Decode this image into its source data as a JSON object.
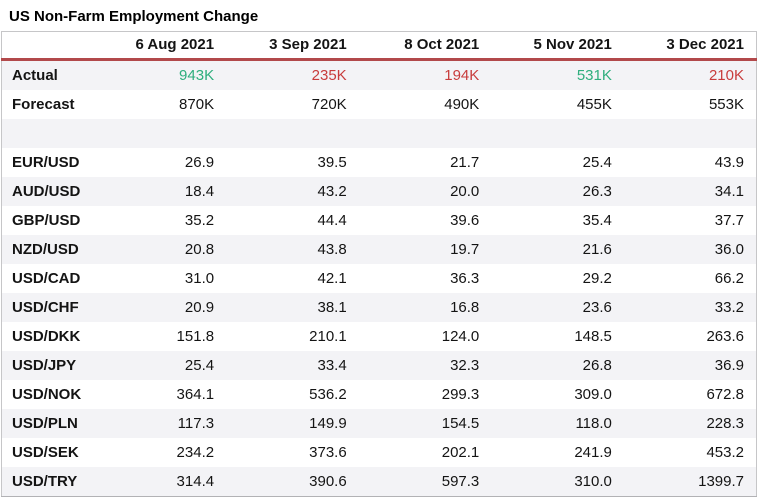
{
  "title": "US Non-Farm Employment Change",
  "colors": {
    "positive": "#2eae7d",
    "negative": "#c83c3c",
    "header_underline": "#b2494b",
    "stripe": "#f3f3f6",
    "border": "#c6c6c8",
    "text": "#141414"
  },
  "chart_data": {
    "type": "table",
    "title": "US Non-Farm Employment Change",
    "columns": [
      "6 Aug 2021",
      "3 Sep 2021",
      "8 Oct 2021",
      "5 Nov 2021",
      "3 Dec 2021"
    ],
    "rows": [
      {
        "label": "Actual",
        "values": [
          "943K",
          "235K",
          "194K",
          "531K",
          "210K"
        ],
        "value_colors": [
          "positive",
          "negative",
          "negative",
          "positive",
          "negative"
        ]
      },
      {
        "label": "Forecast",
        "values": [
          "870K",
          "720K",
          "490K",
          "455K",
          "553K"
        ]
      },
      {
        "label": "",
        "values": [
          "",
          "",
          "",
          "",
          ""
        ],
        "spacer": true
      },
      {
        "label": "EUR/USD",
        "values": [
          "26.9",
          "39.5",
          "21.7",
          "25.4",
          "43.9"
        ]
      },
      {
        "label": "AUD/USD",
        "values": [
          "18.4",
          "43.2",
          "20.0",
          "26.3",
          "34.1"
        ]
      },
      {
        "label": "GBP/USD",
        "values": [
          "35.2",
          "44.4",
          "39.6",
          "35.4",
          "37.7"
        ]
      },
      {
        "label": "NZD/USD",
        "values": [
          "20.8",
          "43.8",
          "19.7",
          "21.6",
          "36.0"
        ]
      },
      {
        "label": "USD/CAD",
        "values": [
          "31.0",
          "42.1",
          "36.3",
          "29.2",
          "66.2"
        ]
      },
      {
        "label": "USD/CHF",
        "values": [
          "20.9",
          "38.1",
          "16.8",
          "23.6",
          "33.2"
        ]
      },
      {
        "label": "USD/DKK",
        "values": [
          "151.8",
          "210.1",
          "124.0",
          "148.5",
          "263.6"
        ]
      },
      {
        "label": "USD/JPY",
        "values": [
          "25.4",
          "33.4",
          "32.3",
          "26.8",
          "36.9"
        ]
      },
      {
        "label": "USD/NOK",
        "values": [
          "364.1",
          "536.2",
          "299.3",
          "309.0",
          "672.8"
        ]
      },
      {
        "label": "USD/PLN",
        "values": [
          "117.3",
          "149.9",
          "154.5",
          "118.0",
          "228.3"
        ]
      },
      {
        "label": "USD/SEK",
        "values": [
          "234.2",
          "373.6",
          "202.1",
          "241.9",
          "453.2"
        ]
      },
      {
        "label": "USD/TRY",
        "values": [
          "314.4",
          "390.6",
          "597.3",
          "310.0",
          "1399.7"
        ]
      }
    ]
  }
}
